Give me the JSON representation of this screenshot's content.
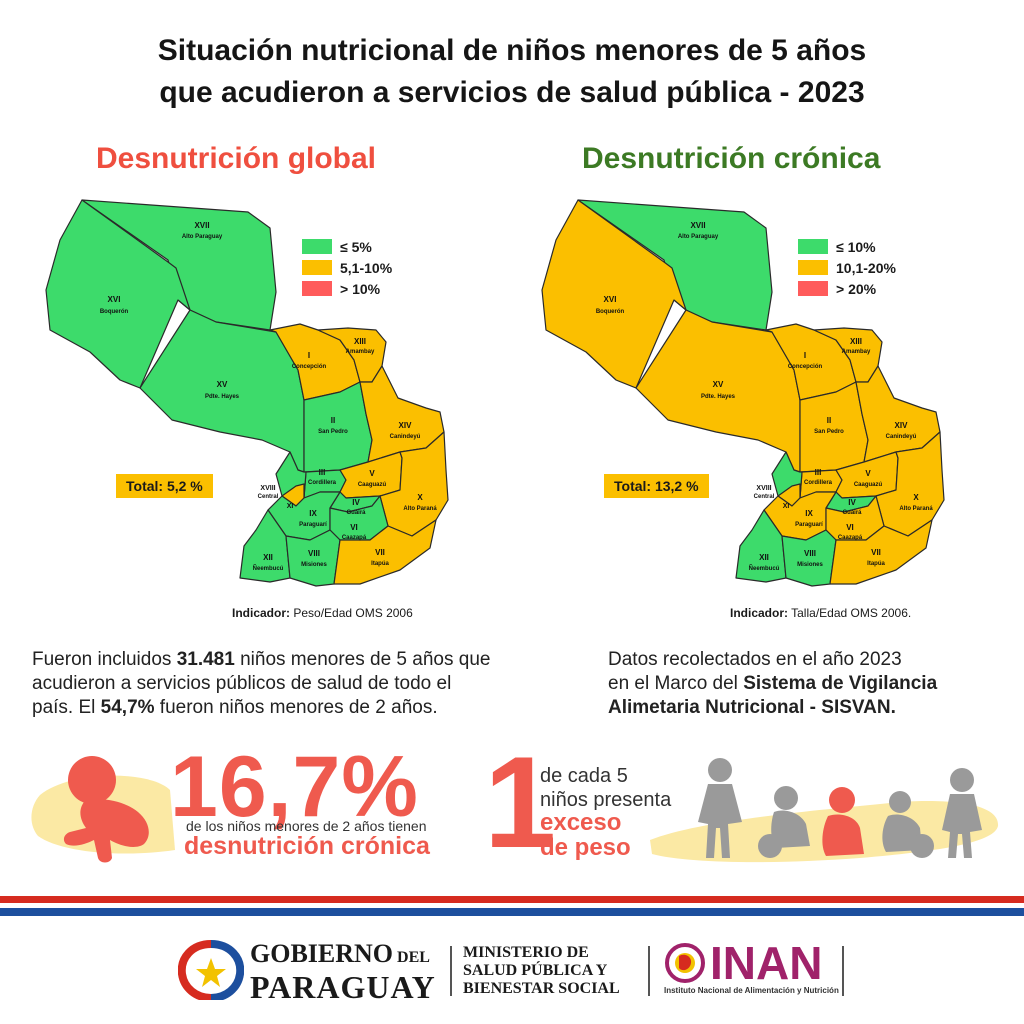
{
  "title": {
    "line1": "Situación nutricional de niños menores de 5 años",
    "line2": "que acudieron a servicios de salud pública - 2023"
  },
  "colors": {
    "green": "#3ddb6b",
    "yellow": "#fbbf00",
    "red": "#ff5b5b",
    "title_red": "#ef4f3f",
    "title_green": "#3c7a24",
    "accent_red": "#ef5a4e",
    "flag_red": "#d62b1f",
    "flag_blue": "#1d4f9e"
  },
  "maps": [
    {
      "title": "Desnutrición global",
      "legend": [
        {
          "label": "≤  5%",
          "color": "#3ddb6b"
        },
        {
          "label": "5,1-10%",
          "color": "#fbbf00"
        },
        {
          "label": "> 10%",
          "color": "#ff5b5b"
        }
      ],
      "total": "Total: 5,2 %",
      "indicator_label": "Indicador:",
      "indicator_value": " Peso/Edad OMS 2006",
      "regions": {
        "XVII": {
          "name": "Alto Paraguay",
          "color": "#3ddb6b"
        },
        "XVI": {
          "name": "Boquerón",
          "color": "#3ddb6b"
        },
        "XV": {
          "name": "Pdte. Hayes",
          "color": "#3ddb6b"
        },
        "I": {
          "name": "Concepción",
          "color": "#fbbf00"
        },
        "XIII": {
          "name": "Amambay",
          "color": "#fbbf00"
        },
        "II": {
          "name": "San Pedro",
          "color": "#3ddb6b"
        },
        "XIV": {
          "name": "Canindeyú",
          "color": "#fbbf00"
        },
        "III": {
          "name": "Cordillera",
          "color": "#3ddb6b"
        },
        "V": {
          "name": "Caaguazú",
          "color": "#fbbf00"
        },
        "XVIII": {
          "name": "Central",
          "color": "#3ddb6b"
        },
        "XI": {
          "name": "",
          "color": "#fbbf00"
        },
        "IV": {
          "name": "Guairá",
          "color": "#3ddb6b"
        },
        "X": {
          "name": "Alto Paraná",
          "color": "#fbbf00"
        },
        "IX": {
          "name": "Paraguarí",
          "color": "#3ddb6b"
        },
        "VI": {
          "name": "Caazapá",
          "color": "#3ddb6b"
        },
        "XII": {
          "name": "Ñeembucú",
          "color": "#3ddb6b"
        },
        "VIII": {
          "name": "Misiones",
          "color": "#3ddb6b"
        },
        "VII": {
          "name": "Itapúa",
          "color": "#fbbf00"
        }
      }
    },
    {
      "title": "Desnutrición crónica",
      "legend": [
        {
          "label": "≤ 10%",
          "color": "#3ddb6b"
        },
        {
          "label": "10,1-20%",
          "color": "#fbbf00"
        },
        {
          "label": "> 20%",
          "color": "#ff5b5b"
        }
      ],
      "total": "Total: 13,2 %",
      "indicator_label": "Indicador:",
      "indicator_value": " Talla/Edad OMS 2006.",
      "regions": {
        "XVII": {
          "name": "Alto Paraguay",
          "color": "#3ddb6b"
        },
        "XVI": {
          "name": "Boquerón",
          "color": "#fbbf00"
        },
        "XV": {
          "name": "Pdte. Hayes",
          "color": "#fbbf00"
        },
        "I": {
          "name": "Concepción",
          "color": "#fbbf00"
        },
        "XIII": {
          "name": "Amambay",
          "color": "#fbbf00"
        },
        "II": {
          "name": "San Pedro",
          "color": "#fbbf00"
        },
        "XIV": {
          "name": "Canindeyú",
          "color": "#fbbf00"
        },
        "III": {
          "name": "Cordillera",
          "color": "#fbbf00"
        },
        "V": {
          "name": "Caaguazú",
          "color": "#fbbf00"
        },
        "XVIII": {
          "name": "Central",
          "color": "#3ddb6b"
        },
        "XI": {
          "name": "",
          "color": "#fbbf00"
        },
        "IV": {
          "name": "Guairá",
          "color": "#3ddb6b"
        },
        "X": {
          "name": "Alto Paraná",
          "color": "#fbbf00"
        },
        "IX": {
          "name": "Paraguarí",
          "color": "#fbbf00"
        },
        "VI": {
          "name": "Caazapá",
          "color": "#fbbf00"
        },
        "XII": {
          "name": "Ñeembucú",
          "color": "#3ddb6b"
        },
        "VIII": {
          "name": "Misiones",
          "color": "#3ddb6b"
        },
        "VII": {
          "name": "Itapúa",
          "color": "#fbbf00"
        }
      }
    }
  ],
  "left_text": {
    "a1": "Fueron incluidos ",
    "a2": "31.481",
    "a3": " niños menores de 5 años que",
    "b": "acudieron a servicios públicos de salud de todo el",
    "c1": "país. El ",
    "c2": "54,7%",
    "c3": " fueron niños menores de 2 años."
  },
  "right_text": {
    "a": "Datos recolectados en el año 2023",
    "b1": "en el Marco del ",
    "b2": "Sistema de Vigilancia",
    "c": "Alimetaria Nutricional - SISVAN."
  },
  "stat1": {
    "value": "16,7%",
    "sub": "de los niños menores de 2 años tienen",
    "strong": "desnutrición crónica"
  },
  "stat2": {
    "number": "1",
    "line1": "de cada 5",
    "line2": "niños presenta",
    "strong1": "exceso",
    "strong2": "de peso"
  },
  "footer": {
    "gov_line1": "GOBIERNO",
    "gov_small": " DEL",
    "gov_line2": "PARAGUAY",
    "min1": "MINISTERIO DE",
    "min2": "SALUD PÚBLICA Y",
    "min3": "BIENESTAR SOCIAL",
    "inan": "INAN",
    "inan_sub": "Instituto Nacional de Alimentación y Nutrición"
  }
}
